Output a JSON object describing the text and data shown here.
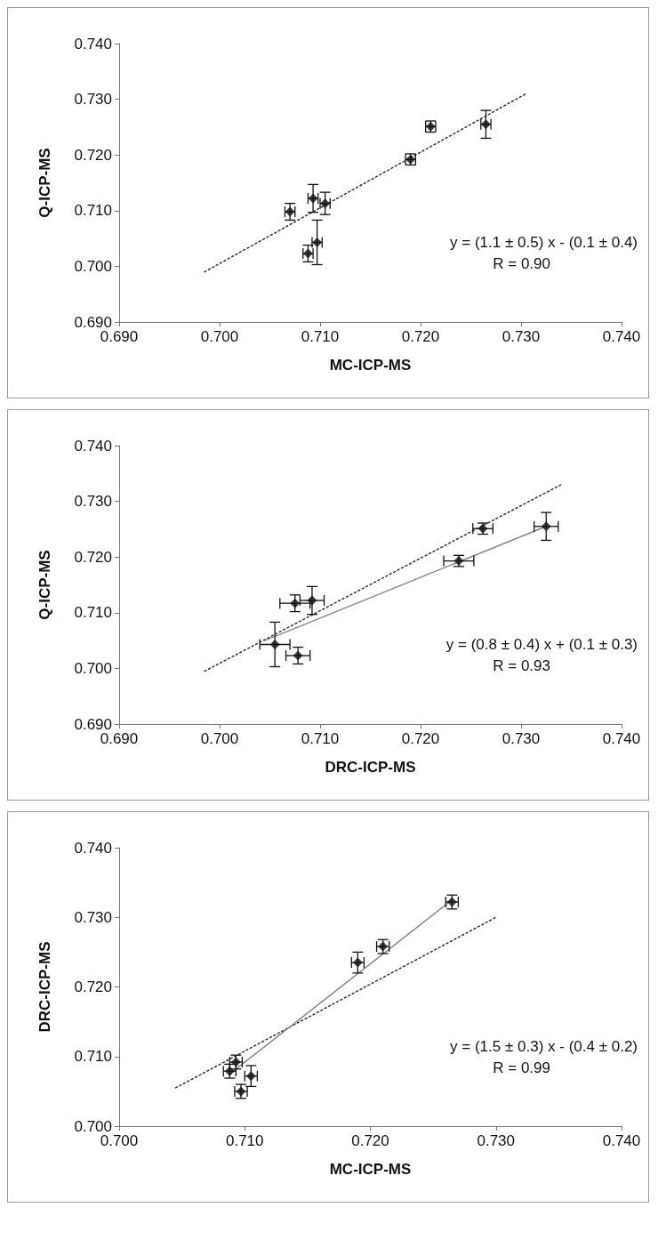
{
  "chart_data": [
    {
      "type": "scatter",
      "xlabel": "MC-ICP-MS",
      "ylabel": "Q-ICP-MS",
      "grid": false,
      "xlim": [
        0.69,
        0.74
      ],
      "xticks": [
        {
          "value": 0.69,
          "label": "0.690"
        },
        {
          "value": 0.7,
          "label": "0.700"
        },
        {
          "value": 0.71,
          "label": "0.710"
        },
        {
          "value": 0.72,
          "label": "0.720"
        },
        {
          "value": 0.73,
          "label": "0.730"
        },
        {
          "value": 0.74,
          "label": "0.740"
        }
      ],
      "ylim": [
        0.69,
        0.74
      ],
      "yticks": [
        {
          "value": 0.69,
          "label": "0.690"
        },
        {
          "value": 0.7,
          "label": "0.700"
        },
        {
          "value": 0.71,
          "label": "0.710"
        },
        {
          "value": 0.72,
          "label": "0.720"
        },
        {
          "value": 0.73,
          "label": "0.730"
        },
        {
          "value": 0.74,
          "label": "0.740"
        }
      ],
      "annotations": [
        "y = (1.1 ± 0.5) x - (0.1 ± 0.4)",
        "R = 0.90"
      ],
      "series": [
        {
          "marker": "diamond",
          "color": "#111111",
          "x": [
            0.707,
            0.7093,
            0.7105,
            0.7088,
            0.7097,
            0.719,
            0.721,
            0.7265
          ],
          "values": [
            0.7098,
            0.7122,
            0.7113,
            0.7023,
            0.7043,
            0.7192,
            0.7251,
            0.7255
          ],
          "errors": [
            0.0015,
            0.0025,
            0.002,
            0.0015,
            0.004,
            0.001,
            0.001,
            0.0025
          ],
          "xerrors": [
            0.0005,
            0.0005,
            0.0005,
            0.0005,
            0.0005,
            0.0005,
            0.0005,
            0.0005
          ]
        },
        {
          "type": "line",
          "marker": "none",
          "color": "#333333",
          "line_style": "dotted",
          "x": [
            0.6985,
            0.7305
          ],
          "values": [
            0.699,
            0.731
          ]
        }
      ]
    },
    {
      "type": "scatter",
      "xlabel": "DRC-ICP-MS",
      "ylabel": "Q-ICP-MS",
      "grid": false,
      "xlim": [
        0.69,
        0.74
      ],
      "xticks": [
        {
          "value": 0.69,
          "label": "0.690"
        },
        {
          "value": 0.7,
          "label": "0.700"
        },
        {
          "value": 0.71,
          "label": "0.710"
        },
        {
          "value": 0.72,
          "label": "0.720"
        },
        {
          "value": 0.73,
          "label": "0.730"
        },
        {
          "value": 0.74,
          "label": "0.740"
        }
      ],
      "ylim": [
        0.69,
        0.74
      ],
      "yticks": [
        {
          "value": 0.69,
          "label": "0.690"
        },
        {
          "value": 0.7,
          "label": "0.700"
        },
        {
          "value": 0.71,
          "label": "0.710"
        },
        {
          "value": 0.72,
          "label": "0.720"
        },
        {
          "value": 0.73,
          "label": "0.730"
        },
        {
          "value": 0.74,
          "label": "0.740"
        }
      ],
      "annotations": [
        "y = (0.8 ± 0.4) x + (0.1 ± 0.3)",
        "R = 0.93"
      ],
      "series": [
        {
          "marker": "diamond",
          "color": "#111111",
          "x": [
            0.7055,
            0.7078,
            0.7075,
            0.7092,
            0.7238,
            0.7262,
            0.7325
          ],
          "values": [
            0.7043,
            0.7023,
            0.7117,
            0.7122,
            0.7193,
            0.7251,
            0.7255
          ],
          "errors": [
            0.004,
            0.0015,
            0.0015,
            0.0025,
            0.001,
            0.001,
            0.0025
          ],
          "xerrors": [
            0.0015,
            0.0012,
            0.0015,
            0.0012,
            0.0015,
            0.001,
            0.0012
          ]
        },
        {
          "type": "line",
          "marker": "none",
          "color": "#333333",
          "line_style": "dotted",
          "x": [
            0.6985,
            0.734
          ],
          "values": [
            0.6995,
            0.733
          ]
        },
        {
          "type": "line",
          "marker": "none",
          "color": "#888888",
          "line_style": "solid",
          "x": [
            0.7045,
            0.7325
          ],
          "values": [
            0.705,
            0.7255
          ]
        }
      ]
    },
    {
      "type": "scatter",
      "xlabel": "MC-ICP-MS",
      "ylabel": "DRC-ICP-MS",
      "grid": false,
      "xlim": [
        0.7,
        0.74
      ],
      "xticks": [
        {
          "value": 0.7,
          "label": "0.700"
        },
        {
          "value": 0.71,
          "label": "0.710"
        },
        {
          "value": 0.72,
          "label": "0.720"
        },
        {
          "value": 0.73,
          "label": "0.730"
        },
        {
          "value": 0.74,
          "label": "0.740"
        }
      ],
      "ylim": [
        0.7,
        0.74
      ],
      "yticks": [
        {
          "value": 0.7,
          "label": "0.700"
        },
        {
          "value": 0.71,
          "label": "0.710"
        },
        {
          "value": 0.72,
          "label": "0.720"
        },
        {
          "value": 0.73,
          "label": "0.730"
        },
        {
          "value": 0.74,
          "label": "0.740"
        }
      ],
      "annotations": [
        "y = (1.5 ± 0.3) x - (0.4 ± 0.2)",
        "R = 0.99"
      ],
      "series": [
        {
          "marker": "diamond",
          "color": "#111111",
          "x": [
            0.7088,
            0.7093,
            0.7097,
            0.7105,
            0.719,
            0.721,
            0.7265
          ],
          "values": [
            0.7079,
            0.7092,
            0.705,
            0.7072,
            0.7235,
            0.7258,
            0.7322
          ],
          "errors": [
            0.001,
            0.001,
            0.001,
            0.0015,
            0.0015,
            0.001,
            0.001
          ],
          "xerrors": [
            0.0005,
            0.0005,
            0.0005,
            0.0005,
            0.0005,
            0.0005,
            0.0005
          ]
        },
        {
          "type": "line",
          "marker": "none",
          "color": "#333333",
          "line_style": "dotted",
          "x": [
            0.7045,
            0.73
          ],
          "values": [
            0.7055,
            0.73
          ]
        },
        {
          "type": "line",
          "marker": "none",
          "color": "#888888",
          "line_style": "solid",
          "x": [
            0.7088,
            0.7265
          ],
          "values": [
            0.7075,
            0.7325
          ]
        }
      ]
    }
  ]
}
